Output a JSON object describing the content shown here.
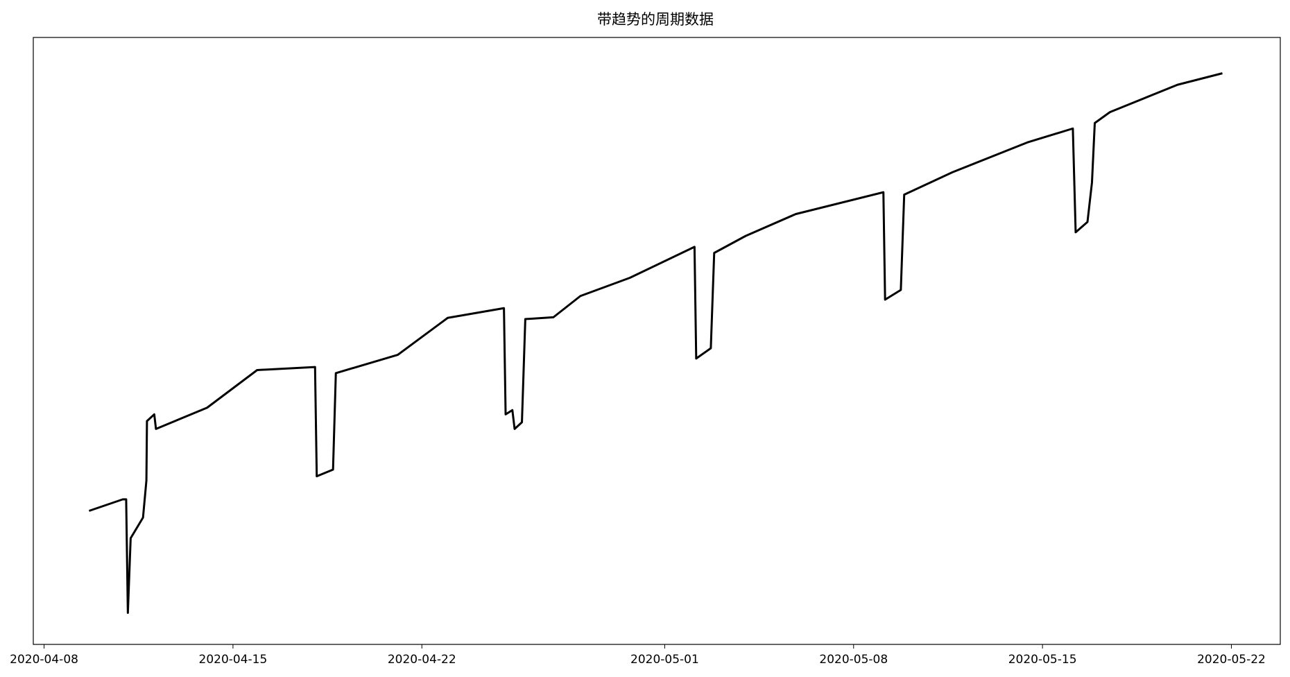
{
  "chart_data": {
    "type": "line",
    "title": "带趋势的周期数据",
    "color": "#000000",
    "x": [
      "2020-04-09 16:00",
      "2020-04-10 22:00",
      "2020-04-11 01:00",
      "2020-04-11 02:30",
      "2020-04-11 05:00",
      "2020-04-11 16:00",
      "2020-04-11 19:00",
      "2020-04-11 19:30",
      "2020-04-12 02:00",
      "2020-04-12 03:30",
      "2020-04-14 01:00",
      "2020-04-15 21:30",
      "2020-04-18 01:00",
      "2020-04-18 02:30",
      "2020-04-18 17:00",
      "2020-04-18 19:30",
      "2020-04-21 02:30",
      "2020-04-22 23:00",
      "2020-04-25 01:00",
      "2020-04-25 02:30",
      "2020-04-25 08:30",
      "2020-04-25 10:30",
      "2020-04-25 17:00",
      "2020-04-25 20:00",
      "2020-04-26 21:00",
      "2020-04-27 21:00",
      "2020-04-29 17:00",
      "2020-05-02 02:30",
      "2020-05-02 04:00",
      "2020-05-02 17:00",
      "2020-05-02 20:00",
      "2020-05-04 00:00",
      "2020-05-05 20:30",
      "2020-05-09 02:30",
      "2020-05-09 04:00",
      "2020-05-09 18:00",
      "2020-05-09 21:00",
      "2020-05-11 16:00",
      "2020-05-14 10:30",
      "2020-05-16 03:00",
      "2020-05-16 05:30",
      "2020-05-16 16:00",
      "2020-05-16 20:00",
      "2020-05-16 22:30",
      "2020-05-17 12:00",
      "2020-05-20 00:00",
      "2020-05-21 16:00"
    ],
    "values": [
      22.0,
      23.9,
      23.9,
      5.2,
      17.5,
      20.9,
      27.0,
      36.8,
      37.9,
      35.5,
      39.0,
      45.2,
      45.7,
      27.7,
      28.8,
      44.7,
      47.7,
      53.8,
      55.4,
      37.9,
      38.6,
      35.5,
      36.6,
      53.6,
      53.9,
      57.4,
      60.4,
      65.5,
      47.1,
      48.8,
      64.5,
      67.3,
      70.9,
      74.5,
      56.8,
      58.4,
      74.1,
      77.8,
      82.7,
      85.0,
      67.9,
      69.6,
      76.1,
      85.9,
      87.7,
      92.2,
      94.1
    ],
    "xlim": [
      "2020-04-07 14:24",
      "2020-05-23 19:30"
    ],
    "xticks": [
      "2020-04-08",
      "2020-04-15",
      "2020-04-22",
      "2020-05-01",
      "2020-05-08",
      "2020-05-15",
      "2020-05-22"
    ],
    "ylim": [
      0,
      100
    ]
  }
}
